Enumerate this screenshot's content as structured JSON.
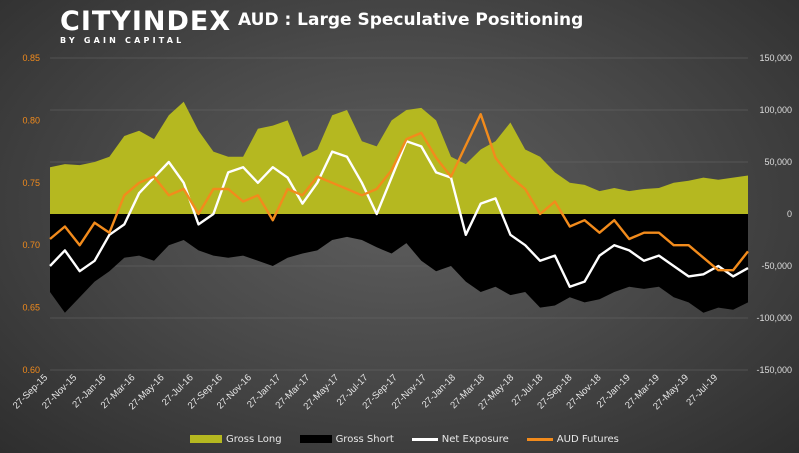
{
  "brand": {
    "name": "CITYINDEX",
    "tagline": "BY GAIN CAPITAL"
  },
  "colors": {
    "gross_long": "#b5b820",
    "gross_short": "#000000",
    "net_exposure": "#ffffff",
    "aud_futures": "#f28b1c",
    "left_axis_text": "#f28b1c",
    "right_axis_text": "#dddddd",
    "gridline": "#6a6a6a"
  },
  "chart_data": {
    "type": "area",
    "title": "AUD : Large Speculative Positioning",
    "grid": true,
    "legend_position": "bottom",
    "x_tick_labels": [
      "27-Sep-15",
      "27-Nov-15",
      "27-Jan-16",
      "27-Mar-16",
      "27-May-16",
      "27-Jul-16",
      "27-Sep-16",
      "27-Nov-16",
      "27-Jan-17",
      "27-Mar-17",
      "27-May-17",
      "27-Jul-17",
      "27-Sep-17",
      "27-Nov-17",
      "27-Jan-18",
      "27-Mar-18",
      "27-May-18",
      "27-Jul-18",
      "27-Sep-18",
      "27-Nov-18",
      "27-Jan-19",
      "27-Mar-19",
      "27-May-19",
      "27-Jul-19"
    ],
    "left_axis": {
      "min": 0.6,
      "max": 0.85,
      "ticks": [
        "0.60",
        "0.65",
        "0.70",
        "0.75",
        "0.80",
        "0.85"
      ]
    },
    "right_axis": {
      "min": -150000,
      "max": 150000,
      "ticks": [
        "-150,000",
        "-100,000",
        "-50,000",
        "0",
        "50,000",
        "100,000",
        "150,000"
      ]
    },
    "x_range_months": [
      0,
      47
    ],
    "series": [
      {
        "name": "Gross Long",
        "type": "area",
        "axis": "right",
        "points": [
          [
            0,
            45000
          ],
          [
            1,
            48000
          ],
          [
            2,
            47000
          ],
          [
            3,
            50000
          ],
          [
            4,
            55000
          ],
          [
            5,
            75000
          ],
          [
            6,
            80000
          ],
          [
            7,
            72000
          ],
          [
            8,
            95000
          ],
          [
            9,
            108000
          ],
          [
            10,
            80000
          ],
          [
            11,
            60000
          ],
          [
            12,
            55000
          ],
          [
            13,
            55000
          ],
          [
            14,
            82000
          ],
          [
            15,
            85000
          ],
          [
            16,
            90000
          ],
          [
            17,
            55000
          ],
          [
            18,
            62000
          ],
          [
            19,
            95000
          ],
          [
            20,
            100000
          ],
          [
            21,
            70000
          ],
          [
            22,
            65000
          ],
          [
            23,
            90000
          ],
          [
            24,
            100000
          ],
          [
            25,
            102000
          ],
          [
            26,
            90000
          ],
          [
            27,
            55000
          ],
          [
            28,
            48000
          ],
          [
            29,
            62000
          ],
          [
            30,
            70000
          ],
          [
            31,
            88000
          ],
          [
            32,
            62000
          ],
          [
            33,
            55000
          ],
          [
            34,
            40000
          ],
          [
            35,
            30000
          ],
          [
            36,
            28000
          ],
          [
            37,
            22000
          ],
          [
            38,
            25000
          ],
          [
            39,
            22000
          ],
          [
            40,
            24000
          ],
          [
            41,
            25000
          ],
          [
            42,
            30000
          ],
          [
            43,
            32000
          ],
          [
            44,
            35000
          ],
          [
            45,
            33000
          ],
          [
            46,
            35000
          ],
          [
            47,
            37000
          ]
        ]
      },
      {
        "name": "Gross Short",
        "type": "area",
        "axis": "right",
        "points": [
          [
            0,
            -75000
          ],
          [
            1,
            -95000
          ],
          [
            2,
            -80000
          ],
          [
            3,
            -65000
          ],
          [
            4,
            -55000
          ],
          [
            5,
            -42000
          ],
          [
            6,
            -40000
          ],
          [
            7,
            -45000
          ],
          [
            8,
            -30000
          ],
          [
            9,
            -25000
          ],
          [
            10,
            -35000
          ],
          [
            11,
            -40000
          ],
          [
            12,
            -42000
          ],
          [
            13,
            -40000
          ],
          [
            14,
            -45000
          ],
          [
            15,
            -50000
          ],
          [
            16,
            -42000
          ],
          [
            17,
            -38000
          ],
          [
            18,
            -35000
          ],
          [
            19,
            -25000
          ],
          [
            20,
            -22000
          ],
          [
            21,
            -25000
          ],
          [
            22,
            -32000
          ],
          [
            23,
            -38000
          ],
          [
            24,
            -28000
          ],
          [
            25,
            -45000
          ],
          [
            26,
            -55000
          ],
          [
            27,
            -50000
          ],
          [
            28,
            -65000
          ],
          [
            29,
            -75000
          ],
          [
            30,
            -70000
          ],
          [
            31,
            -78000
          ],
          [
            32,
            -75000
          ],
          [
            33,
            -90000
          ],
          [
            34,
            -88000
          ],
          [
            35,
            -80000
          ],
          [
            36,
            -85000
          ],
          [
            37,
            -82000
          ],
          [
            38,
            -75000
          ],
          [
            39,
            -70000
          ],
          [
            40,
            -72000
          ],
          [
            41,
            -70000
          ],
          [
            42,
            -80000
          ],
          [
            43,
            -85000
          ],
          [
            44,
            -95000
          ],
          [
            45,
            -90000
          ],
          [
            46,
            -92000
          ],
          [
            47,
            -85000
          ]
        ]
      },
      {
        "name": "Net Exposure",
        "type": "line",
        "axis": "right",
        "points": [
          [
            0,
            -50000
          ],
          [
            1,
            -35000
          ],
          [
            2,
            -55000
          ],
          [
            3,
            -45000
          ],
          [
            4,
            -20000
          ],
          [
            5,
            -10000
          ],
          [
            6,
            20000
          ],
          [
            7,
            35000
          ],
          [
            8,
            50000
          ],
          [
            9,
            30000
          ],
          [
            10,
            -10000
          ],
          [
            11,
            0
          ],
          [
            12,
            40000
          ],
          [
            13,
            45000
          ],
          [
            14,
            30000
          ],
          [
            15,
            45000
          ],
          [
            16,
            35000
          ],
          [
            17,
            10000
          ],
          [
            18,
            30000
          ],
          [
            19,
            60000
          ],
          [
            20,
            55000
          ],
          [
            21,
            30000
          ],
          [
            22,
            0
          ],
          [
            23,
            35000
          ],
          [
            24,
            70000
          ],
          [
            25,
            65000
          ],
          [
            26,
            40000
          ],
          [
            27,
            35000
          ],
          [
            28,
            -20000
          ],
          [
            29,
            10000
          ],
          [
            30,
            15000
          ],
          [
            31,
            -20000
          ],
          [
            32,
            -30000
          ],
          [
            33,
            -45000
          ],
          [
            34,
            -40000
          ],
          [
            35,
            -70000
          ],
          [
            36,
            -65000
          ],
          [
            37,
            -40000
          ],
          [
            38,
            -30000
          ],
          [
            39,
            -35000
          ],
          [
            40,
            -45000
          ],
          [
            41,
            -40000
          ],
          [
            42,
            -50000
          ],
          [
            43,
            -60000
          ],
          [
            44,
            -58000
          ],
          [
            45,
            -50000
          ],
          [
            46,
            -60000
          ],
          [
            47,
            -52000
          ]
        ]
      },
      {
        "name": "AUD Futures",
        "type": "line",
        "axis": "left",
        "points": [
          [
            0,
            0.705
          ],
          [
            1,
            0.715
          ],
          [
            2,
            0.7
          ],
          [
            3,
            0.718
          ],
          [
            4,
            0.71
          ],
          [
            5,
            0.74
          ],
          [
            6,
            0.75
          ],
          [
            7,
            0.755
          ],
          [
            8,
            0.74
          ],
          [
            9,
            0.745
          ],
          [
            10,
            0.725
          ],
          [
            11,
            0.745
          ],
          [
            12,
            0.745
          ],
          [
            13,
            0.735
          ],
          [
            14,
            0.74
          ],
          [
            15,
            0.72
          ],
          [
            16,
            0.745
          ],
          [
            17,
            0.74
          ],
          [
            18,
            0.755
          ],
          [
            19,
            0.75
          ],
          [
            20,
            0.745
          ],
          [
            21,
            0.74
          ],
          [
            22,
            0.745
          ],
          [
            23,
            0.76
          ],
          [
            24,
            0.785
          ],
          [
            25,
            0.79
          ],
          [
            26,
            0.77
          ],
          [
            27,
            0.755
          ],
          [
            28,
            0.78
          ],
          [
            29,
            0.805
          ],
          [
            30,
            0.77
          ],
          [
            31,
            0.755
          ],
          [
            32,
            0.745
          ],
          [
            33,
            0.725
          ],
          [
            34,
            0.735
          ],
          [
            35,
            0.715
          ],
          [
            36,
            0.72
          ],
          [
            37,
            0.71
          ],
          [
            38,
            0.72
          ],
          [
            39,
            0.705
          ],
          [
            40,
            0.71
          ],
          [
            41,
            0.71
          ],
          [
            42,
            0.7
          ],
          [
            43,
            0.7
          ],
          [
            44,
            0.69
          ],
          [
            45,
            0.68
          ],
          [
            46,
            0.68
          ],
          [
            47,
            0.695
          ]
        ]
      }
    ]
  }
}
